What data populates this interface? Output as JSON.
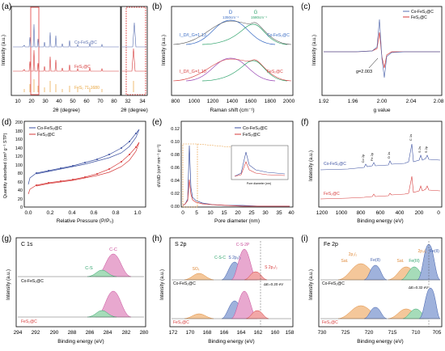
{
  "panels": {
    "a": {
      "letter": "(a)",
      "xlabel_left": "2θ (degree)",
      "xlabel_right": "2θ (degree)",
      "ylabel": "Intensity (a.u.)",
      "xticks_left": [
        "10",
        "20",
        "30",
        "40",
        "50",
        "60",
        "70",
        "80"
      ],
      "xticks_right": [
        "32",
        "34"
      ],
      "series_labels": [
        "Co-FeS₂@C",
        "FeS₂@C",
        "FeS₂ 71-1680"
      ],
      "colors": {
        "co": "#5a6fb0",
        "fes": "#d63a3a",
        "ref": "#e8a33a",
        "box": "#e23b3b"
      }
    },
    "b": {
      "letter": "(b)",
      "xlabel": "Raman shift (cm⁻¹)",
      "ylabel": "Intensity (a.u.)",
      "xticks": [
        "800",
        "1000",
        "1200",
        "1400",
        "1600",
        "1800",
        "2000"
      ],
      "peak_D": "D",
      "peak_G": "G",
      "peak_D_pos": "1350cm⁻¹",
      "peak_G_pos": "1580cm⁻¹",
      "ratio_top": "I_D/I_G=1.13",
      "ratio_bottom": "I_D/I_G=1.10",
      "label_top": "Co-FeS₂@C",
      "label_bottom": "FeS₂@C"
    },
    "c": {
      "letter": "(c)",
      "xlabel": "g value",
      "ylabel": "Intensity (a.u.)",
      "xticks": [
        "1.92",
        "1.96",
        "2.00",
        "2.04",
        "2.08"
      ],
      "legend": [
        "Co-FeS₂@C",
        "FeS₂@C"
      ],
      "annotation": "g=2.003"
    },
    "d": {
      "letter": "(d)",
      "xlabel": "Relative Pressure (P/P₀)",
      "ylabel": "Quantity adsorbed (cm³ g⁻¹ STP)",
      "xticks": [
        "0.0",
        "0.2",
        "0.4",
        "0.6",
        "0.8",
        "1.0"
      ],
      "yticks": [
        "0",
        "20",
        "40",
        "60",
        "80",
        "100",
        "120",
        "140",
        "160",
        "180",
        "200"
      ],
      "legend": [
        "Co-FeS₂@C",
        "FeS₂@C"
      ]
    },
    "e": {
      "letter": "(e)",
      "xlabel": "Pore diameter (nm)",
      "ylabel": "dV/dD (cm³ nm⁻¹ g⁻¹)",
      "xticks": [
        "0",
        "5",
        "10",
        "15",
        "20",
        "25",
        "30",
        "35",
        "40"
      ],
      "yticks": [
        "0.00",
        "0.02",
        "0.04",
        "0.06",
        "0.08",
        "0.10",
        "0.12"
      ],
      "legend": [
        "Co-FeS₂@C",
        "FeS₂@C"
      ],
      "inset_xlabel": "Pore diameter (nm)"
    },
    "f": {
      "letter": "(f)",
      "xlabel": "Binding energy (eV)",
      "ylabel": "Intensity (a.u.)",
      "xticks": [
        "1200",
        "1000",
        "800",
        "600",
        "400",
        "200",
        "0"
      ],
      "labels": [
        "Co 2p",
        "Fe 2p",
        "O 1s",
        "C 1s",
        "S 2s",
        "S 2p"
      ],
      "series_labels": [
        "Co-FeS₂@C",
        "FeS₂@C"
      ]
    },
    "g": {
      "letter": "(g)",
      "title": "C 1s",
      "xlabel": "Binding energy (eV)",
      "ylabel": "Intensity (a.u.)",
      "xticks": [
        "294",
        "292",
        "290",
        "288",
        "286",
        "284",
        "282",
        "280"
      ],
      "peak_labels": [
        "C-C",
        "C-S"
      ],
      "series_labels": [
        "Co-FeS₂@C",
        "FeS₂@C"
      ]
    },
    "h": {
      "letter": "(h)",
      "title": "S 2p",
      "xlabel": "Binding energy (eV)",
      "ylabel": "Intensity (a.u.)",
      "xticks": [
        "172",
        "170",
        "168",
        "166",
        "164",
        "162",
        "160",
        "158"
      ],
      "peak_labels": [
        "SOₓ",
        "C-S-C",
        "S 2p₁/₂",
        "C-S-2P",
        "S 2p₃/₂"
      ],
      "shift": "ΔE=0.20 eV",
      "series_labels": [
        "Co-FeS₂@C",
        "FeS₂@C"
      ]
    },
    "i": {
      "letter": "(i)",
      "title": "Fe 2p",
      "xlabel": "Binding energy (eV)",
      "ylabel": "Intensity (a.u.)",
      "xticks": [
        "730",
        "725",
        "720",
        "715",
        "710",
        "705"
      ],
      "peak_labels": [
        "2p₁/₂",
        "Fe(II)",
        "Sat.",
        "Sat.",
        "Fe(III)",
        "2p₃/₂",
        "Fe(II)"
      ],
      "shift": "ΔE=0.32 eV",
      "series_labels": [
        "Co-FeS₂@C",
        "FeS₂@C"
      ]
    }
  }
}
